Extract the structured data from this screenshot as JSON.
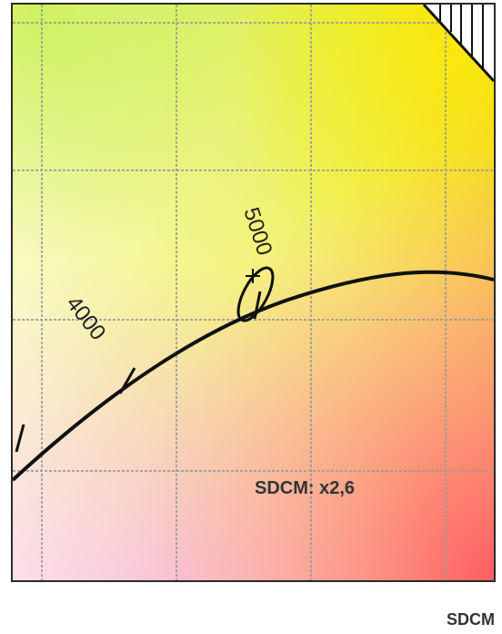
{
  "diagram": {
    "cct_labels": [
      "4000",
      "5000"
    ],
    "annotation": "SDCM: x2,6"
  },
  "footer": {
    "label": "SDCM"
  },
  "colors": {
    "frame": "#2a2a2a",
    "locus": "#111111",
    "grid": "#9a9a9a",
    "text": "#333333"
  }
}
